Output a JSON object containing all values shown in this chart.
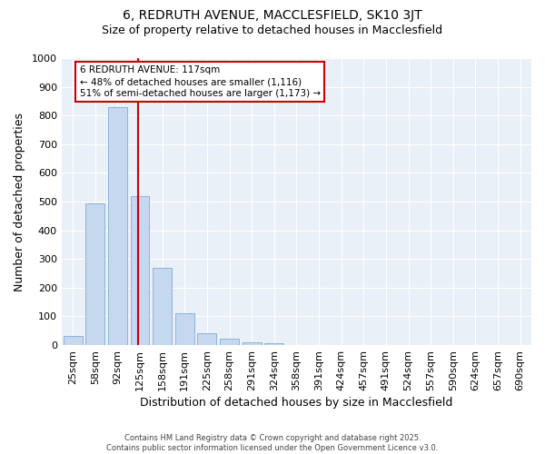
{
  "title_line1": "6, REDRUTH AVENUE, MACCLESFIELD, SK10 3JT",
  "title_line2": "Size of property relative to detached houses in Macclesfield",
  "xlabel": "Distribution of detached houses by size in Macclesfield",
  "ylabel": "Number of detached properties",
  "bar_color": "#c5d8f0",
  "bar_edge_color": "#8ab4d8",
  "plot_bg_color": "#eaf0f8",
  "fig_bg_color": "#ffffff",
  "grid_color": "#ffffff",
  "categories": [
    "25sqm",
    "58sqm",
    "92sqm",
    "125sqm",
    "158sqm",
    "191sqm",
    "225sqm",
    "258sqm",
    "291sqm",
    "324sqm",
    "358sqm",
    "391sqm",
    "424sqm",
    "457sqm",
    "491sqm",
    "524sqm",
    "557sqm",
    "590sqm",
    "624sqm",
    "657sqm",
    "690sqm"
  ],
  "values": [
    33,
    493,
    830,
    520,
    270,
    110,
    40,
    22,
    10,
    5,
    0,
    0,
    0,
    0,
    0,
    0,
    0,
    0,
    0,
    0,
    0
  ],
  "vline_x": 3,
  "vline_color": "#cc0000",
  "annotation_text": "6 REDRUTH AVENUE: 117sqm\n← 48% of detached houses are smaller (1,116)\n51% of semi-detached houses are larger (1,173) →",
  "ylim": [
    0,
    1000
  ],
  "yticks": [
    0,
    100,
    200,
    300,
    400,
    500,
    600,
    700,
    800,
    900,
    1000
  ],
  "footer_text": "Contains HM Land Registry data © Crown copyright and database right 2025.\nContains public sector information licensed under the Open Government Licence v3.0.",
  "title_fontsize": 10,
  "subtitle_fontsize": 9,
  "xlabel_fontsize": 9,
  "ylabel_fontsize": 9,
  "tick_fontsize": 8,
  "footer_fontsize": 6,
  "annotation_fontsize": 7.5
}
